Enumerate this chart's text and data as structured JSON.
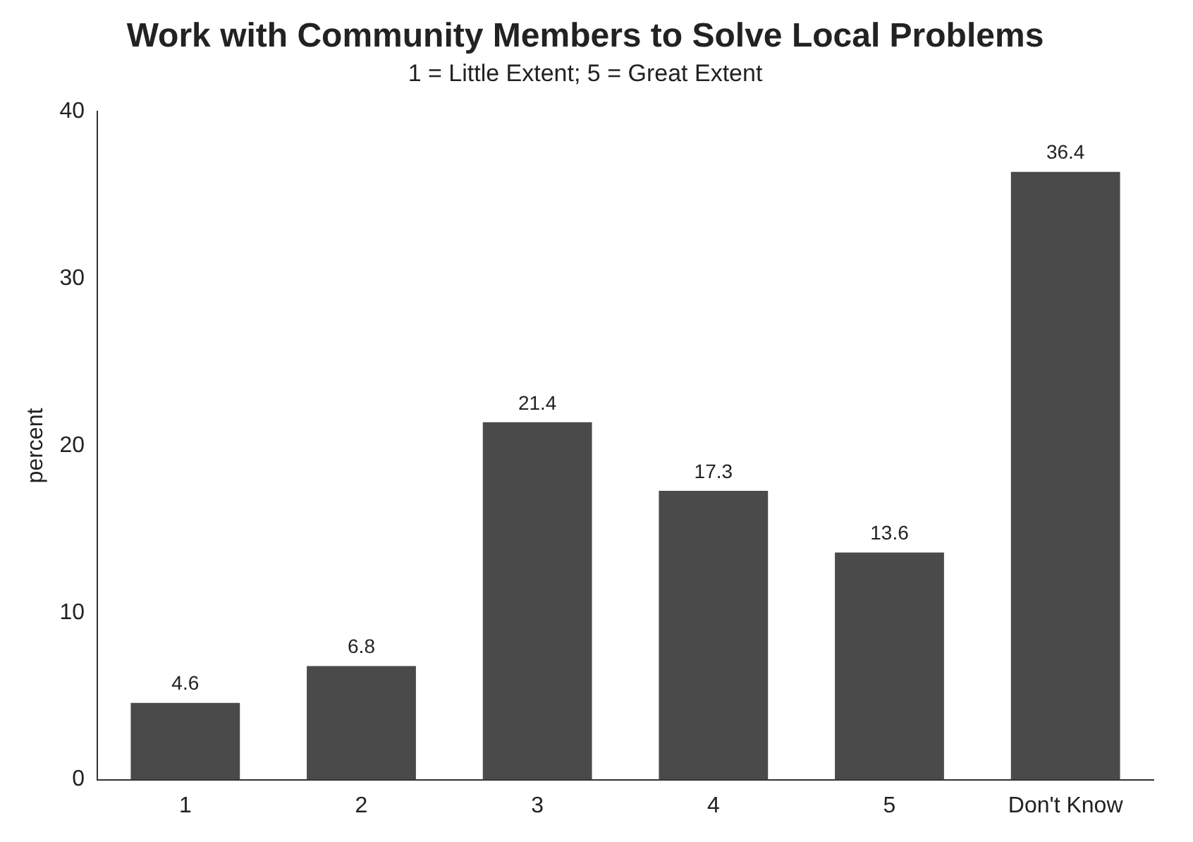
{
  "chart_data": {
    "type": "bar",
    "title": "Work with Community Members to Solve Local Problems",
    "subtitle": "1 = Little Extent; 5 = Great Extent",
    "ylabel": "percent",
    "categories": [
      "1",
      "2",
      "3",
      "4",
      "5",
      "Don't Know"
    ],
    "values": [
      4.6,
      6.8,
      21.4,
      17.3,
      13.6,
      36.4
    ],
    "color": "#4a4a4a",
    "ylim": [
      0,
      40
    ],
    "yticks": [
      0,
      10,
      20,
      30,
      40
    ],
    "grid": false,
    "legend": false,
    "data_labels": true
  }
}
